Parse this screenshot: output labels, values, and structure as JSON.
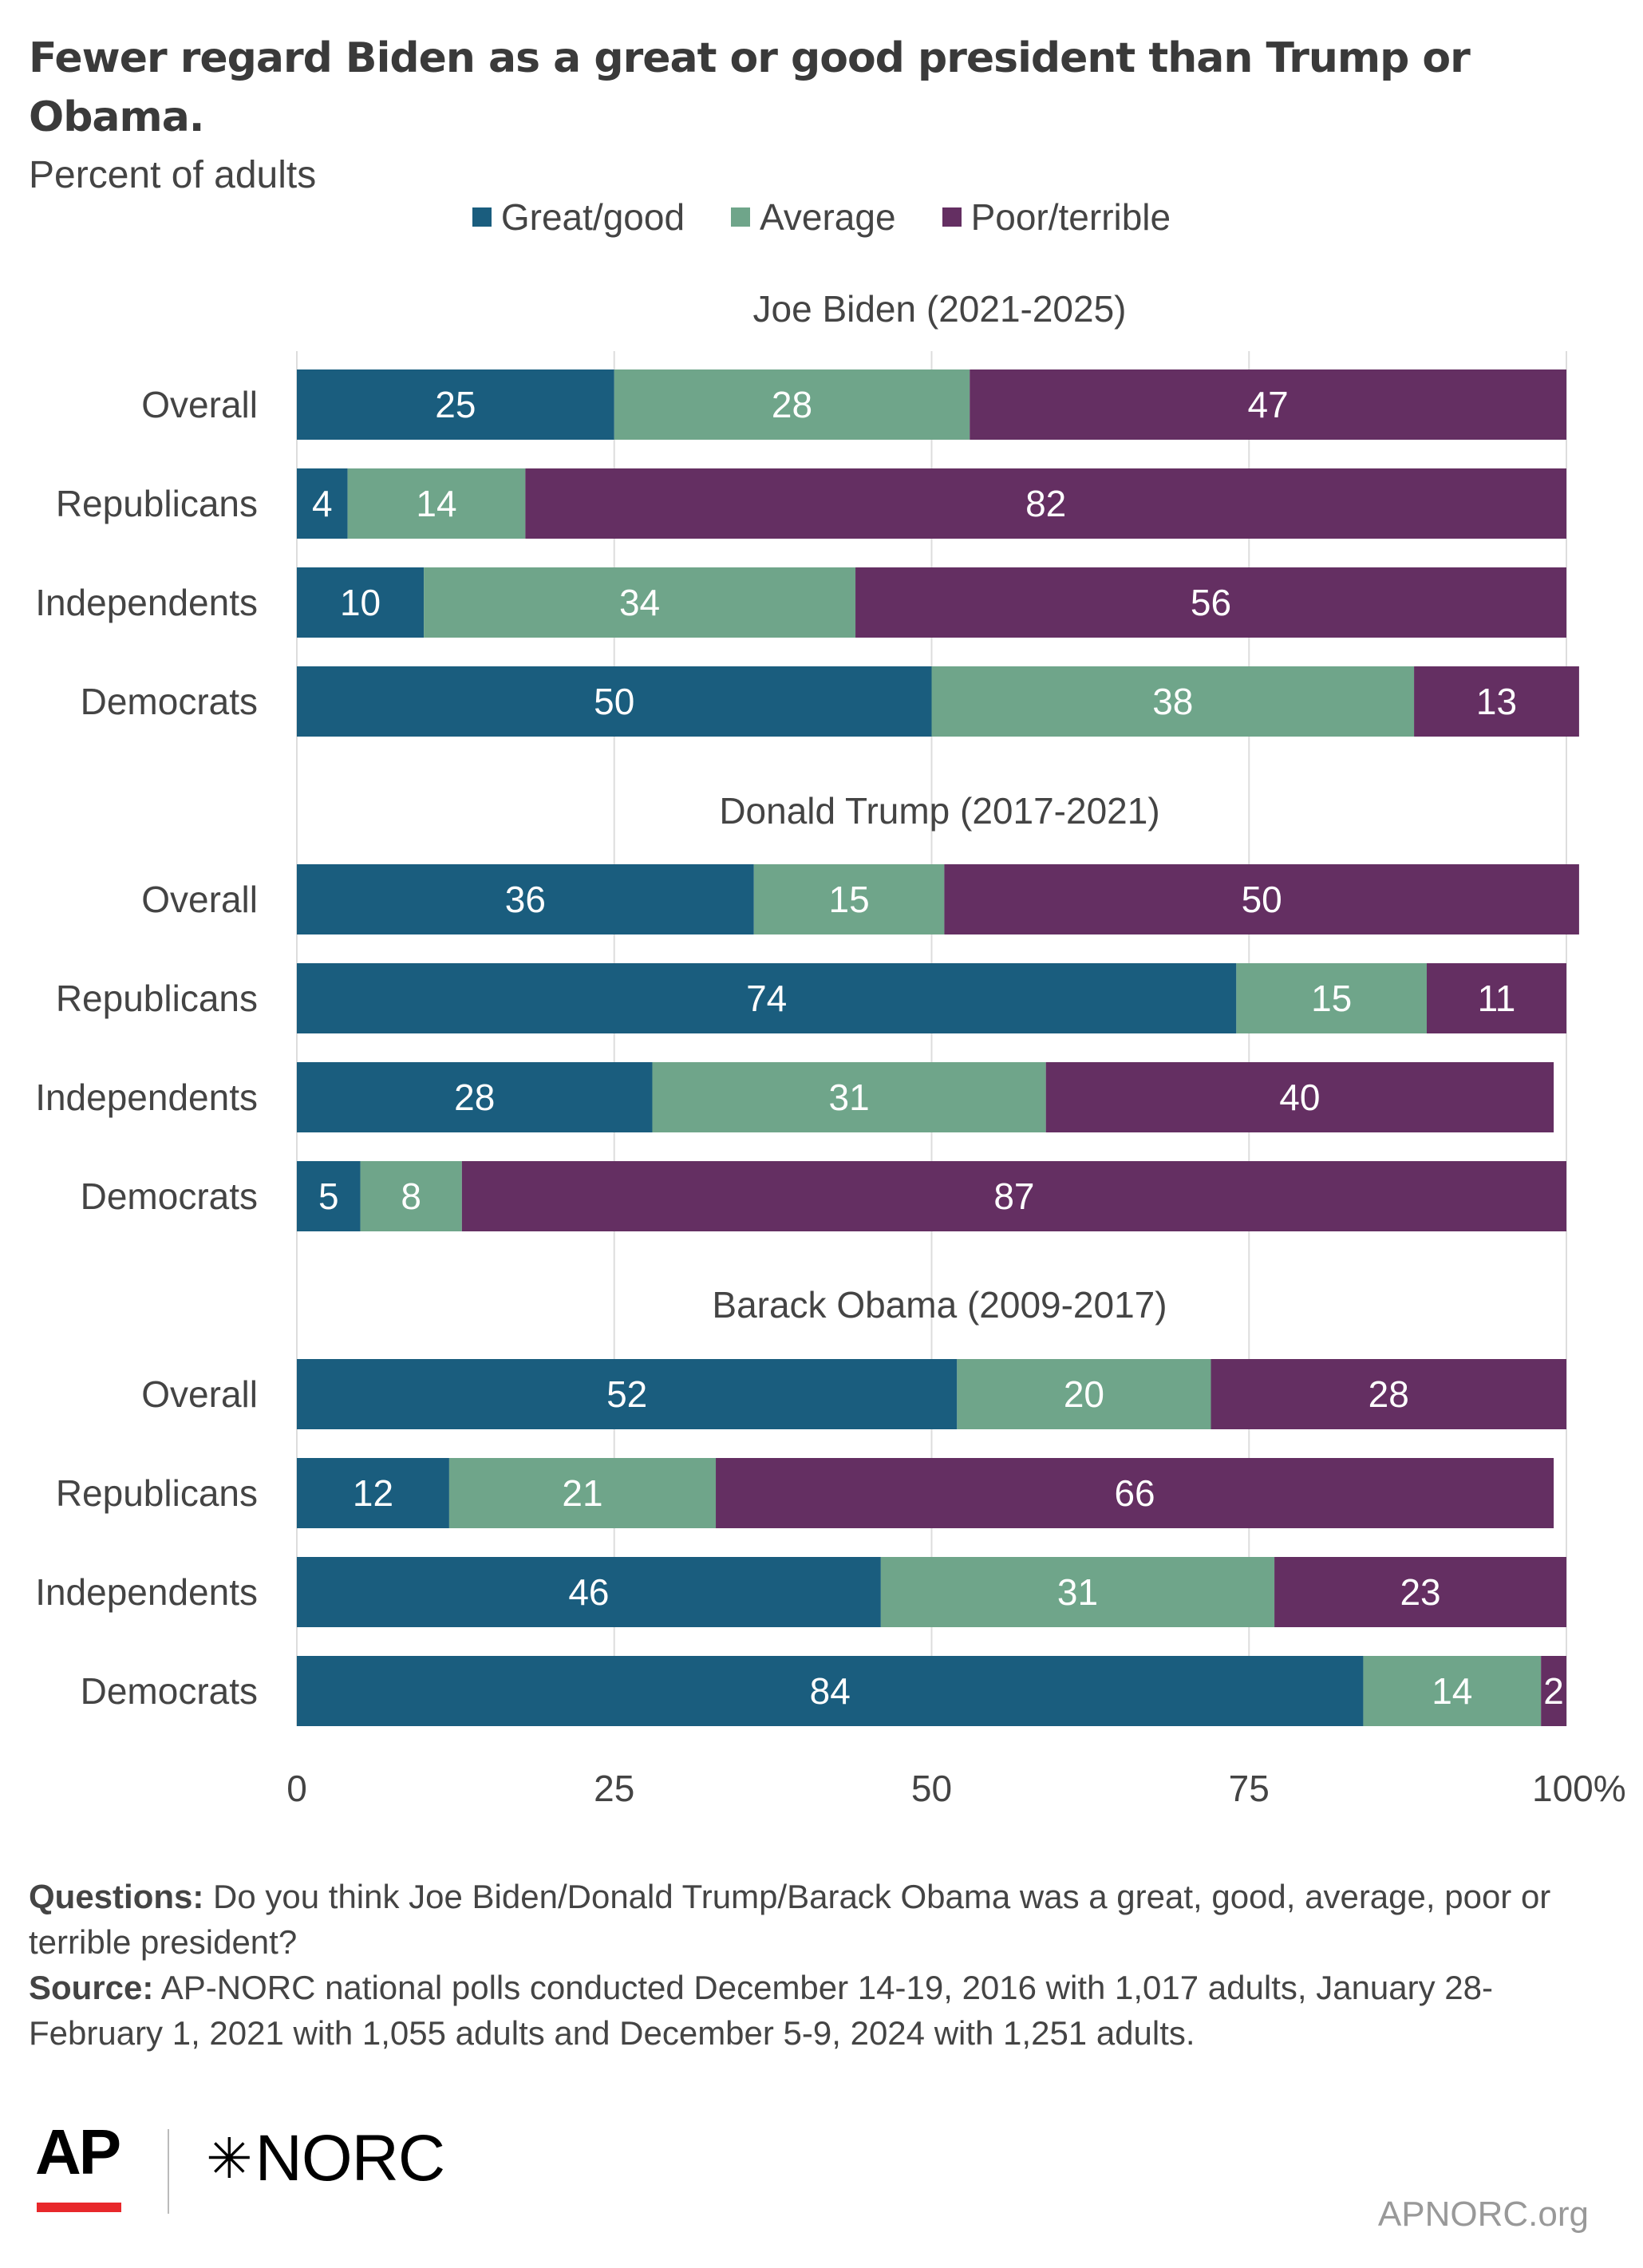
{
  "title": "Fewer regard Biden as a great or good president than Trump or Obama.",
  "subtitle": "Percent of adults",
  "colors": {
    "great_good": "#1a5d7e",
    "average": "#6fa58a",
    "poor_terrible": "#642f62",
    "grid": "#dddddd",
    "label_text": "#ffffff"
  },
  "chart_data": {
    "type": "bar",
    "orientation": "horizontal",
    "stacked": true,
    "legend": {
      "placement": "top",
      "entries": [
        "Great/good",
        "Average",
        "Poor/terrible"
      ]
    },
    "x_ticks": [
      "0",
      "25",
      "50",
      "75",
      "100%"
    ],
    "xlim": [
      0,
      100
    ],
    "grid": true,
    "groups": [
      {
        "title": "Joe Biden (2021-2025)",
        "categories": [
          "Overall",
          "Republicans",
          "Independents",
          "Democrats"
        ],
        "series": [
          {
            "name": "Great/good",
            "values": [
              25,
              4,
              10,
              50
            ]
          },
          {
            "name": "Average",
            "values": [
              28,
              14,
              34,
              38
            ]
          },
          {
            "name": "Poor/terrible",
            "values": [
              47,
              82,
              56,
              13
            ]
          }
        ]
      },
      {
        "title": "Donald Trump (2017-2021)",
        "categories": [
          "Overall",
          "Republicans",
          "Independents",
          "Democrats"
        ],
        "series": [
          {
            "name": "Great/good",
            "values": [
              36,
              74,
              28,
              5
            ]
          },
          {
            "name": "Average",
            "values": [
              15,
              15,
              31,
              8
            ]
          },
          {
            "name": "Poor/terrible",
            "values": [
              50,
              11,
              40,
              87
            ]
          }
        ]
      },
      {
        "title": "Barack Obama  (2009-2017)",
        "categories": [
          "Overall",
          "Republicans",
          "Independents",
          "Democrats"
        ],
        "series": [
          {
            "name": "Great/good",
            "values": [
              52,
              12,
              46,
              84
            ]
          },
          {
            "name": "Average",
            "values": [
              20,
              21,
              31,
              14
            ]
          },
          {
            "name": "Poor/terrible",
            "values": [
              28,
              66,
              23,
              2
            ]
          }
        ]
      }
    ]
  },
  "notes": {
    "questions_label": "Questions:",
    "questions_text": " Do you think Joe Biden/Donald Trump/Barack Obama was a great, good, average, poor or terrible president?",
    "source_label": "Source:",
    "source_text": " AP-NORC national polls conducted December 14-19, 2016 with 1,017 adults, January 28-February 1, 2021 with 1,055 adults and December 5-9, 2024 with 1,251 adults."
  },
  "branding": {
    "ap_logo": "AP",
    "norc_mark": "✳",
    "norc_logo": "NORC",
    "site": "APNORC.org"
  }
}
